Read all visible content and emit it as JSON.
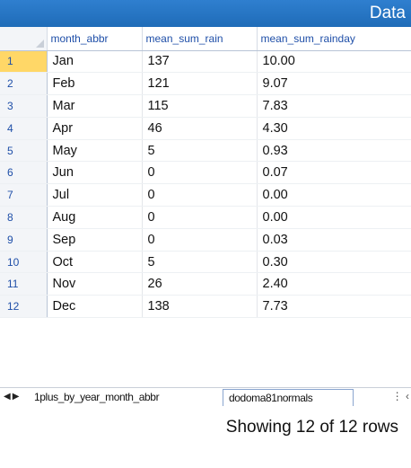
{
  "window": {
    "title_partial": "Data"
  },
  "table": {
    "columns": [
      "month_abbr",
      "mean_sum_rain",
      "mean_sum_rainday"
    ],
    "rows": [
      {
        "n": "1",
        "month": "Jan",
        "rain": "137",
        "rainday": "10.00"
      },
      {
        "n": "2",
        "month": "Feb",
        "rain": "121",
        "rainday": "9.07"
      },
      {
        "n": "3",
        "month": "Mar",
        "rain": "115",
        "rainday": "7.83"
      },
      {
        "n": "4",
        "month": "Apr",
        "rain": "46",
        "rainday": "4.30"
      },
      {
        "n": "5",
        "month": "May",
        "rain": "5",
        "rainday": "0.93"
      },
      {
        "n": "6",
        "month": "Jun",
        "rain": "0",
        "rainday": "0.07"
      },
      {
        "n": "7",
        "month": "Jul",
        "rain": "0",
        "rainday": "0.00"
      },
      {
        "n": "8",
        "month": "Aug",
        "rain": "0",
        "rainday": "0.00"
      },
      {
        "n": "9",
        "month": "Sep",
        "rain": "0",
        "rainday": "0.03"
      },
      {
        "n": "10",
        "month": "Oct",
        "rain": "5",
        "rainday": "0.30"
      },
      {
        "n": "11",
        "month": "Nov",
        "rain": "26",
        "rainday": "2.40"
      },
      {
        "n": "12",
        "month": "Dec",
        "rain": "138",
        "rainday": "7.73"
      }
    ],
    "selected_row": "1"
  },
  "sheet_tabs": {
    "nav_prev_icon": "triangle-left-icon",
    "nav_next_icon": "triangle-right-icon",
    "tabs": [
      "1plus_by_year_month_abbr",
      "dodoma81normals"
    ],
    "active_tab": "dodoma81normals"
  },
  "status": {
    "text": "Showing 12 of 12 rows"
  },
  "colors": {
    "titlebar": "#1f6cb8",
    "header_text": "#1f4fa8",
    "selected_row_number": "#ffd767"
  }
}
